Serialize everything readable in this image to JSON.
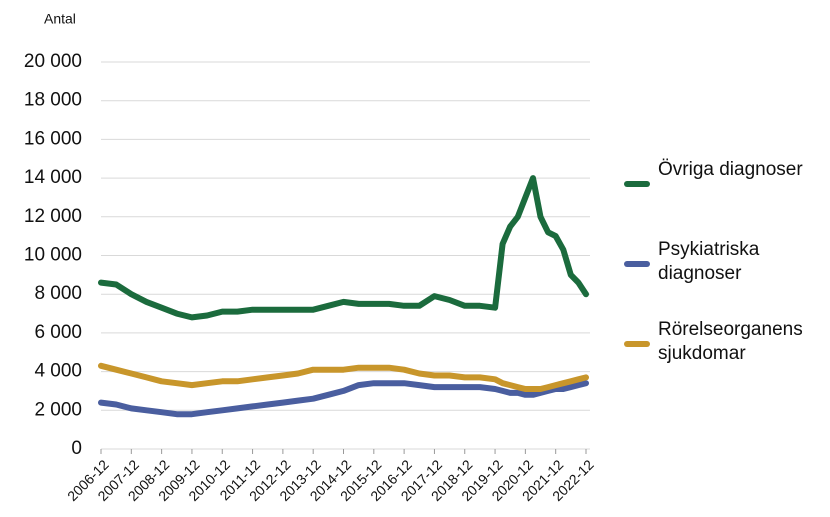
{
  "chart_data": {
    "type": "line",
    "y_axis_label": "Antal",
    "x": [
      "2006-12",
      "2007-06",
      "2007-12",
      "2008-06",
      "2008-12",
      "2009-06",
      "2009-12",
      "2010-06",
      "2010-12",
      "2011-06",
      "2011-12",
      "2012-06",
      "2012-12",
      "2013-06",
      "2013-12",
      "2014-06",
      "2014-12",
      "2015-06",
      "2015-12",
      "2016-06",
      "2016-12",
      "2017-06",
      "2017-12",
      "2018-06",
      "2018-12",
      "2019-06",
      "2019-12",
      "2020-03",
      "2020-06",
      "2020-09",
      "2020-12",
      "2021-03",
      "2021-06",
      "2021-09",
      "2021-12",
      "2022-03",
      "2022-06",
      "2022-09",
      "2022-12"
    ],
    "series": [
      {
        "name": "Övriga diagnoser",
        "color": "#1b6b3d",
        "values": [
          8600,
          8500,
          8000,
          7600,
          7300,
          7000,
          6800,
          6900,
          7100,
          7100,
          7200,
          7200,
          7200,
          7200,
          7200,
          7400,
          7600,
          7500,
          7500,
          7500,
          7400,
          7400,
          7900,
          7700,
          7400,
          7400,
          7300,
          10600,
          11500,
          12000,
          13000,
          14000,
          12000,
          11200,
          11000,
          10300,
          9000,
          8600,
          8000
        ]
      },
      {
        "name": "Psykiatriska diagnoser",
        "color": "#4a5e9f",
        "values": [
          2400,
          2300,
          2100,
          2000,
          1900,
          1800,
          1800,
          1900,
          2000,
          2100,
          2200,
          2300,
          2400,
          2500,
          2600,
          2800,
          3000,
          3300,
          3400,
          3400,
          3400,
          3300,
          3200,
          3200,
          3200,
          3200,
          3100,
          3000,
          2900,
          2900,
          2800,
          2800,
          2900,
          3000,
          3100,
          3100,
          3200,
          3300,
          3400
        ]
      },
      {
        "name": "Rörelseorganens sjukdomar",
        "color": "#c8962b",
        "values": [
          4300,
          4100,
          3900,
          3700,
          3500,
          3400,
          3300,
          3400,
          3500,
          3500,
          3600,
          3700,
          3800,
          3900,
          4100,
          4100,
          4100,
          4200,
          4200,
          4200,
          4100,
          3900,
          3800,
          3800,
          3700,
          3700,
          3600,
          3400,
          3300,
          3200,
          3100,
          3100,
          3100,
          3200,
          3300,
          3400,
          3500,
          3600,
          3700
        ]
      }
    ],
    "xlim": [
      "2006-12",
      "2022-12"
    ],
    "xticks": [
      "2006-12",
      "2007-12",
      "2008-12",
      "2009-12",
      "2010-12",
      "2011-12",
      "2012-12",
      "2013-12",
      "2014-12",
      "2015-12",
      "2016-12",
      "2017-12",
      "2018-12",
      "2019-12",
      "2020-12",
      "2021-12",
      "2022-12"
    ],
    "ylim": [
      0,
      20000
    ],
    "yticks": [
      0,
      {
        "value": 2000,
        "label": "2 000"
      },
      {
        "value": 4000,
        "label": "4 000"
      },
      {
        "value": 6000,
        "label": "6 000"
      },
      {
        "value": 8000,
        "label": "8 000"
      },
      {
        "value": 10000,
        "label": "10 000"
      },
      {
        "value": 12000,
        "label": "12 000"
      },
      {
        "value": 14000,
        "label": "14 000"
      },
      {
        "value": 16000,
        "label": "16 000"
      },
      {
        "value": 18000,
        "label": "18 000"
      },
      {
        "value": 20000,
        "label": "20 000"
      }
    ],
    "grid": true,
    "legend": "right"
  }
}
